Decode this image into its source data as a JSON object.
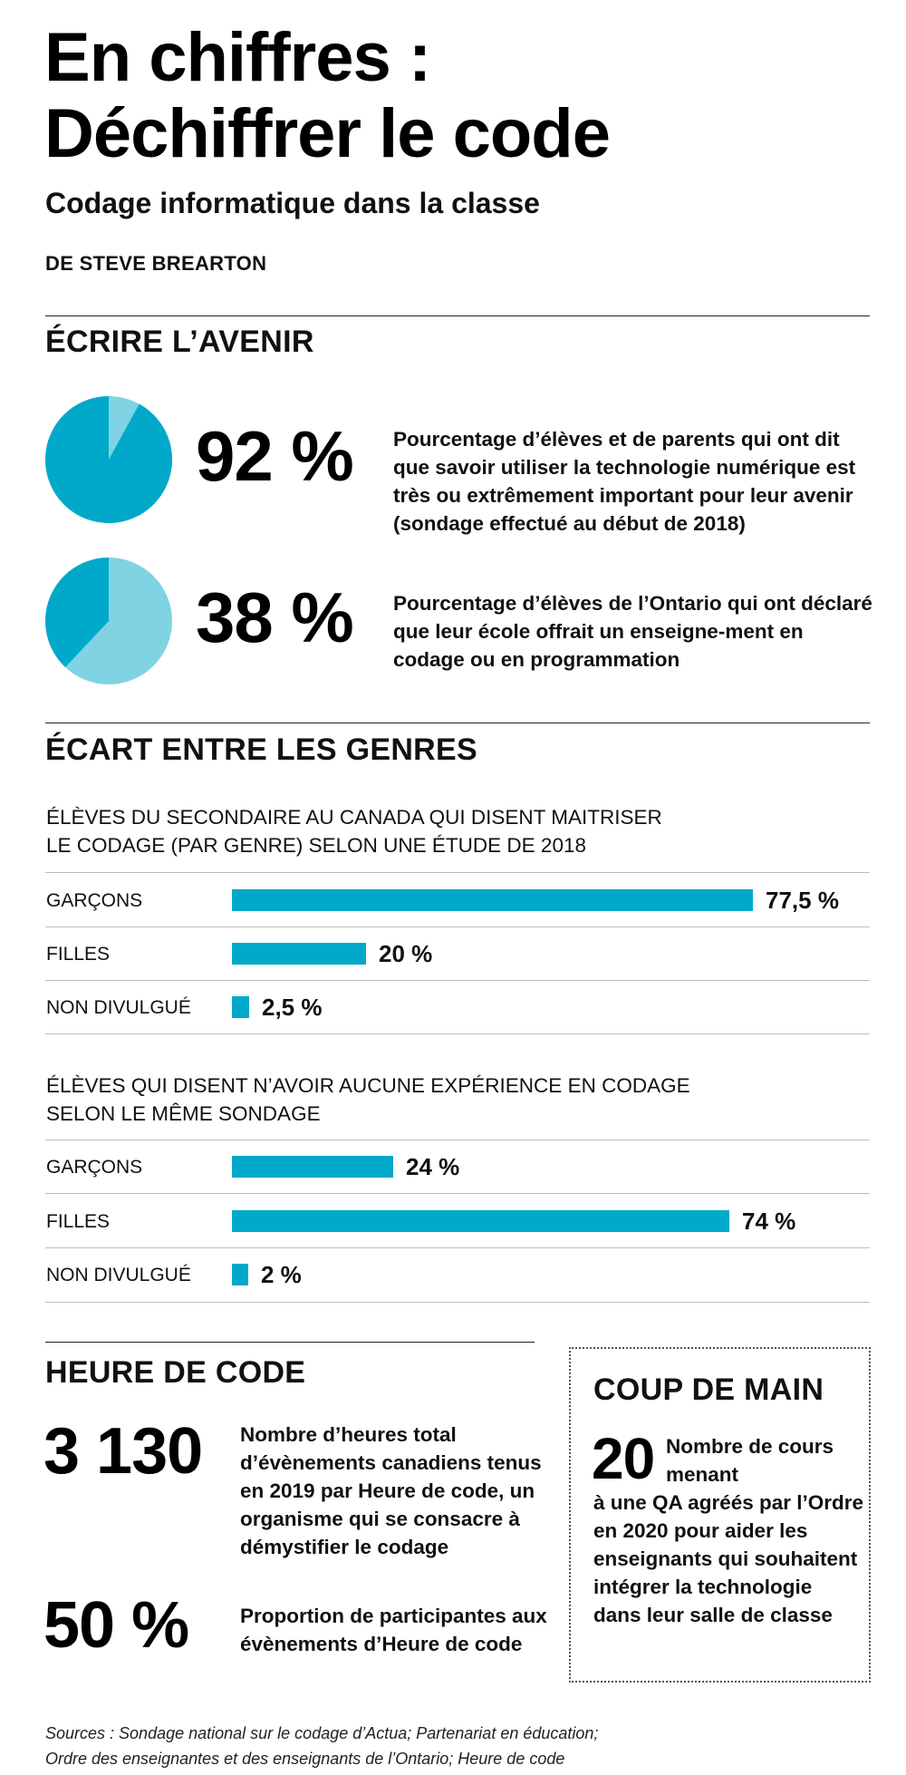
{
  "header": {
    "title_line1": "En chiffres :",
    "title_line2": "Déchiffrer le code",
    "subtitle": "Codage informatique dans la classe",
    "byline": "DE STEVE BREARTON"
  },
  "colors": {
    "accent": "#00a9c9",
    "accent_light": "#7fd3e3"
  },
  "sections": {
    "avenir": {
      "heading": "ÉCRIRE L’AVENIR",
      "stats": [
        {
          "value": "92 %",
          "desc": "Pourcentage d’élèves et de parents qui ont dit que savoir utiliser la technologie numérique est très ou extrêmement important pour leur avenir (sondage effectué au début de 2018)"
        },
        {
          "value": "38 %",
          "desc": "Pourcentage d’élèves de l’Ontario qui ont déclaré que leur école offrait un enseigne-ment en codage ou en programmation"
        }
      ]
    },
    "genres": {
      "heading": "ÉCART ENTRE LES GENRES"
    },
    "heure": {
      "heading": "HEURE DE CODE",
      "stats": [
        {
          "value": "3 130",
          "desc": "Nombre d’heures total d’évènements canadiens tenus en 2019 par Heure de code, un organisme qui se consacre à démystifier le codage"
        },
        {
          "value": "50 %",
          "desc": "Proportion de participantes aux évènements d’Heure de code"
        }
      ]
    },
    "coup": {
      "heading": "COUP DE MAIN",
      "value": "20",
      "desc_first": "Nombre de cours menant",
      "desc_rest": "à une QA agréés par l’Ordre en 2020 pour aider les enseignants qui souhaitent intégrer la technologie dans leur salle de classe"
    }
  },
  "chart_data": [
    {
      "type": "pie",
      "values": [
        92,
        8
      ],
      "label": "92 %"
    },
    {
      "type": "pie",
      "values": [
        38,
        62
      ],
      "label": "38 %"
    },
    {
      "type": "bar",
      "title_line1": "ÉLÈVES DU SECONDAIRE AU CANADA QUI DISENT MAITRISER",
      "title_line2": "LE CODAGE (PAR GENRE) SELON UNE ÉTUDE DE 2018",
      "categories": [
        "GARÇONS",
        "FILLES",
        "NON DIVULGUÉ"
      ],
      "values": [
        77.5,
        20,
        2.5
      ],
      "labels": [
        "77,5 %",
        "20 %",
        "2,5 %"
      ]
    },
    {
      "type": "bar",
      "title_line1": "ÉLÈVES QUI DISENT N’AVOIR AUCUNE EXPÉRIENCE EN CODAGE",
      "title_line2": "SELON LE MÊME SONDAGE",
      "categories": [
        "GARÇONS",
        "FILLES",
        "NON DIVULGUÉ"
      ],
      "values": [
        24,
        74,
        2
      ],
      "labels": [
        "24 %",
        "74 %",
        "2 %"
      ]
    }
  ],
  "sources": {
    "line1": "Sources : Sondage national sur le codage d’Actua; Partenariat en éducation;",
    "line2": "Ordre des enseignantes et des enseignants de l’Ontario; Heure de code"
  }
}
